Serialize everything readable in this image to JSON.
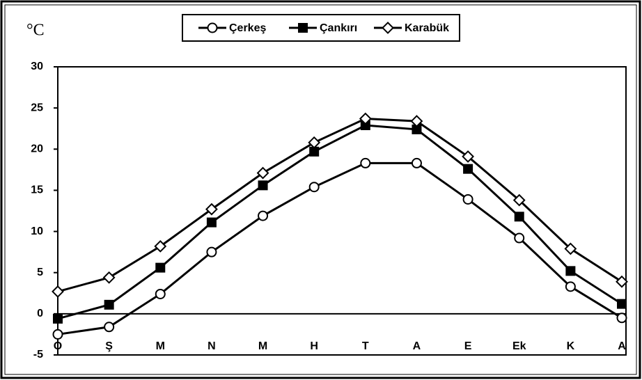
{
  "chart_data": {
    "type": "line",
    "y_unit": "°C",
    "categories": [
      "O",
      "Ş",
      "M",
      "N",
      "M",
      "H",
      "T",
      "A",
      "E",
      "Ek",
      "K",
      "A"
    ],
    "series": [
      {
        "name": "Çerkeş",
        "color": "#000000",
        "marker": "circle",
        "values": [
          -2.5,
          -1.6,
          2.4,
          7.5,
          11.9,
          15.4,
          18.3,
          18.3,
          13.9,
          9.2,
          3.3,
          -0.5
        ]
      },
      {
        "name": "Çankırı",
        "color": "#000000",
        "marker": "square",
        "values": [
          -0.6,
          1.1,
          5.6,
          11.1,
          15.6,
          19.7,
          22.9,
          22.4,
          17.6,
          11.8,
          5.2,
          1.2
        ]
      },
      {
        "name": "Karabük",
        "color": "#000000",
        "marker": "diamond",
        "values": [
          2.7,
          4.4,
          8.2,
          12.7,
          17.1,
          20.8,
          23.7,
          23.4,
          19.1,
          13.8,
          7.9,
          3.9
        ]
      }
    ],
    "ylim": [
      -5,
      30
    ],
    "yticks": [
      -5,
      0,
      5,
      10,
      15,
      20,
      25,
      30
    ],
    "grid": false,
    "legend": "top"
  }
}
